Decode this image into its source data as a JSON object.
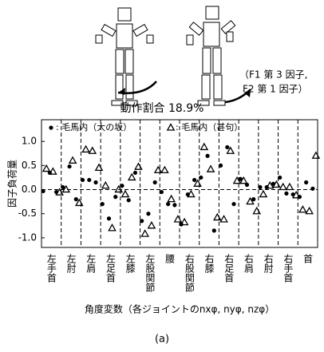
{
  "caption": "(a)",
  "figure_note": {
    "ratio": "動作割合 18.9%",
    "factors": [
      "（F1 第 3 因子,",
      "F2 第 1 因子）"
    ]
  },
  "chart_data": {
    "type": "scatter",
    "y_label": "因子負荷量",
    "x_label": "角度変数（各ジョイントのnxφ, nyφ, nzφ）",
    "categories": [
      null,
      "左手首",
      null,
      null,
      "左肘",
      null,
      null,
      "左肩",
      null,
      null,
      "左足首",
      null,
      null,
      "左膝",
      null,
      null,
      "左股関節",
      null,
      null,
      "腰",
      null,
      null,
      "右股関節",
      null,
      null,
      "右膝",
      null,
      null,
      "右足首",
      null,
      null,
      "右肩",
      null,
      null,
      "右肘",
      null,
      null,
      "右手首",
      null,
      null,
      "首",
      null
    ],
    "ylim": [
      -1.2,
      1.45
    ],
    "yticks": [
      {
        "value": 1.0,
        "label": "1.0"
      },
      {
        "value": 0.5,
        "label": "0.5"
      },
      {
        "value": 0.0,
        "label": "0.0"
      },
      {
        "value": -0.5,
        "label": "-0.5"
      },
      {
        "value": -1.0,
        "label": "-1.0"
      }
    ],
    "series": [
      {
        "name": ": 毛馬内（大の坂）",
        "marker": "circle",
        "color": "#000000",
        "values": [
          -0.03,
          0.35,
          -0.05,
          0.05,
          0.48,
          -0.2,
          0.2,
          0.2,
          0.15,
          -0.3,
          -0.6,
          -0.15,
          0.08,
          -0.22,
          0.35,
          -0.65,
          -0.5,
          0.15,
          -0.05,
          -0.3,
          -0.32,
          -0.72,
          -0.1,
          0.2,
          0.25,
          0.7,
          -0.85,
          0.5,
          0.88,
          -0.3,
          0.22,
          0.1,
          -0.2,
          0.05,
          0.05,
          0.12,
          0.25,
          -0.08,
          -0.1,
          -0.15,
          0.15,
          0.02
        ]
      },
      {
        "name": ": 毛馬内（甚句）",
        "marker": "triangle",
        "color": "#000000",
        "values": [
          0.43,
          0.37,
          -0.06,
          0.0,
          0.6,
          -0.28,
          0.83,
          0.8,
          0.45,
          0.08,
          -0.8,
          0.0,
          -0.1,
          0.25,
          0.47,
          -0.92,
          -0.75,
          0.4,
          0.4,
          -0.2,
          -0.62,
          -0.68,
          -0.1,
          0.12,
          0.88,
          0.42,
          -0.58,
          -0.62,
          0.8,
          0.18,
          0.18,
          -0.25,
          -0.45,
          -0.1,
          0.08,
          0.1,
          0.05,
          0.05,
          -0.12,
          -0.42,
          -0.45,
          0.7
        ]
      }
    ]
  }
}
